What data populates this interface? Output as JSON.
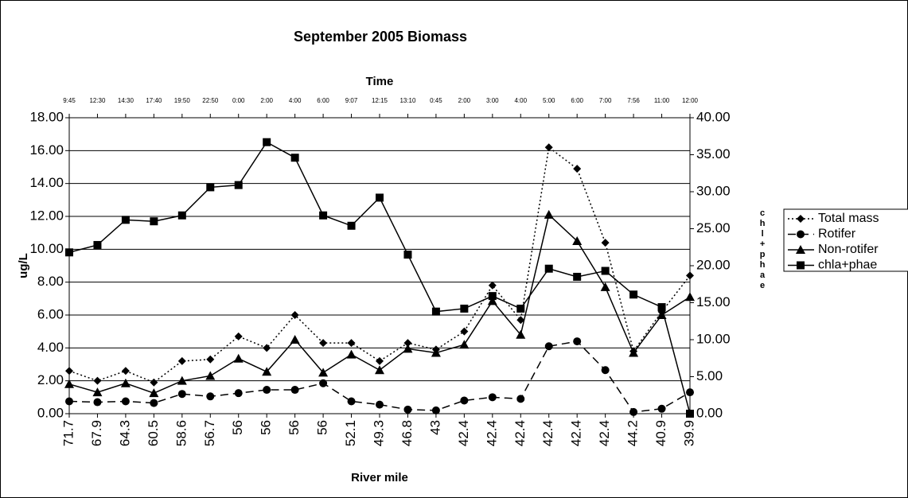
{
  "chart_data": {
    "type": "line",
    "title": "September 2005 Biomass",
    "x2label": "Time",
    "xlabel": "River mile",
    "ylabel": "ug/L",
    "y2label": "chl+phae",
    "categories": [
      "71.7",
      "67.9",
      "64.3",
      "60.5",
      "58.6",
      "56.7",
      "56",
      "56",
      "56",
      "56",
      "52.1",
      "49.3",
      "46.8",
      "43",
      "42.4",
      "42.4",
      "42.4",
      "42.4",
      "42.4",
      "42.4",
      "44.2",
      "40.9",
      "39.9"
    ],
    "top_categories": [
      "9:45",
      "12:30",
      "14:30",
      "17:40",
      "19:50",
      "22:50",
      "0:00",
      "2:00",
      "4:00",
      "6:00",
      "9:07",
      "12:15",
      "13:10",
      "0:45",
      "2:00",
      "3:00",
      "4:00",
      "5:00",
      "6:00",
      "7:00",
      "7:56",
      "11:00",
      "12:00"
    ],
    "ylim": [
      0,
      18
    ],
    "yticks": [
      {
        "value": 0,
        "label": "0.00"
      },
      {
        "value": 2,
        "label": "2.00"
      },
      {
        "value": 4,
        "label": "4.00"
      },
      {
        "value": 6,
        "label": "6.00"
      },
      {
        "value": 8,
        "label": "8.00"
      },
      {
        "value": 10,
        "label": "10.00"
      },
      {
        "value": 12,
        "label": "12.00"
      },
      {
        "value": 14,
        "label": "14.00"
      },
      {
        "value": 16,
        "label": "16.00"
      },
      {
        "value": 18,
        "label": "18.00"
      }
    ],
    "y2lim": [
      0,
      40
    ],
    "y2ticks": [
      {
        "value": 0,
        "label": "0.00"
      },
      {
        "value": 5,
        "label": "5.00"
      },
      {
        "value": 10,
        "label": "10.00"
      },
      {
        "value": 15,
        "label": "15.00"
      },
      {
        "value": 20,
        "label": "20.00"
      },
      {
        "value": 25,
        "label": "25.00"
      },
      {
        "value": 30,
        "label": "30.00"
      },
      {
        "value": 35,
        "label": "35.00"
      },
      {
        "value": 40,
        "label": "40.00"
      }
    ],
    "grid": true,
    "legend": "right",
    "series": [
      {
        "name": "Total mass",
        "color": "#000000",
        "dash": "dotted",
        "marker": "diamond",
        "values": [
          2.6,
          2.0,
          2.6,
          1.9,
          3.2,
          3.3,
          4.7,
          4.0,
          6.0,
          4.3,
          4.3,
          3.2,
          4.3,
          3.9,
          5.0,
          7.8,
          5.7,
          16.2,
          14.9,
          10.4,
          3.8,
          6.2,
          8.4
        ]
      },
      {
        "name": "Rotifer",
        "color": "#000000",
        "dash": "dashed",
        "marker": "circle",
        "values": [
          0.75,
          0.7,
          0.75,
          0.65,
          1.2,
          1.05,
          1.25,
          1.45,
          1.45,
          1.85,
          0.75,
          0.55,
          0.25,
          0.2,
          0.8,
          1.0,
          0.9,
          4.1,
          4.4,
          2.65,
          0.1,
          0.3,
          1.3
        ]
      },
      {
        "name": "Non-rotifer",
        "color": "#000000",
        "dash": "solid",
        "marker": "triangle",
        "values": [
          1.8,
          1.3,
          1.85,
          1.25,
          2.0,
          2.3,
          3.35,
          2.55,
          4.5,
          2.5,
          3.6,
          2.65,
          3.95,
          3.7,
          4.2,
          6.85,
          4.8,
          12.1,
          10.5,
          7.7,
          3.7,
          6.0,
          7.1
        ]
      },
      {
        "name": "chla+phae",
        "color": "#000000",
        "dash": "solid",
        "marker": "square",
        "axis": "y2",
        "values": [
          21.8,
          22.8,
          26.2,
          26.0,
          26.8,
          30.6,
          30.9,
          36.7,
          34.6,
          26.8,
          25.4,
          29.2,
          21.5,
          13.8,
          14.2,
          15.9,
          14.2,
          19.6,
          18.5,
          19.3,
          16.1,
          14.4,
          0.0
        ]
      }
    ]
  }
}
